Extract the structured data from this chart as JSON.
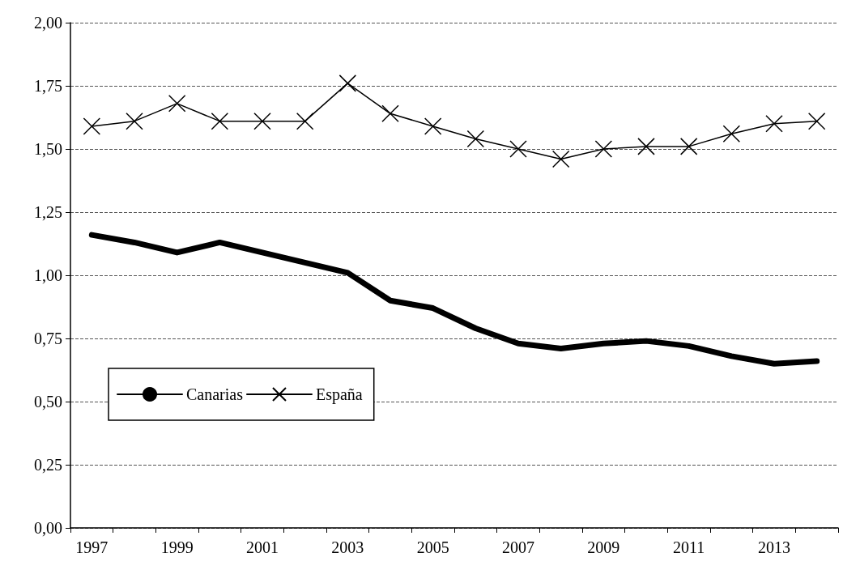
{
  "chart_data": {
    "type": "line",
    "categories": [
      "1997",
      null,
      "1999",
      null,
      "2001",
      null,
      "2003",
      null,
      "2005",
      null,
      "2007",
      null,
      "2009",
      null,
      "2011",
      null,
      "2013",
      null
    ],
    "series": [
      {
        "name": "Canarias",
        "color": "#000000",
        "marker": "none",
        "values": [
          1.16,
          1.13,
          1.09,
          1.13,
          1.09,
          1.05,
          1.01,
          0.9,
          0.87,
          0.79,
          0.73,
          0.71,
          0.73,
          0.74,
          0.72,
          0.68,
          0.65,
          0.66
        ]
      },
      {
        "name": "España",
        "color": "#000000",
        "marker": "cross",
        "values": [
          1.59,
          1.61,
          1.68,
          1.61,
          1.61,
          1.61,
          1.76,
          1.64,
          1.59,
          1.54,
          1.5,
          1.46,
          1.5,
          1.51,
          1.51,
          1.56,
          1.6,
          1.61
        ]
      }
    ],
    "ylim": [
      0,
      2
    ],
    "yticks": [
      {
        "value": 0,
        "label": "0,00"
      },
      {
        "value": 0.25,
        "label": "0,25"
      },
      {
        "value": 0.5,
        "label": "0,50"
      },
      {
        "value": 0.75,
        "label": "0,75"
      },
      {
        "value": 1,
        "label": "1,00"
      },
      {
        "value": 1.25,
        "label": "1,25"
      },
      {
        "value": 1.5,
        "label": "1,50"
      },
      {
        "value": 1.75,
        "label": "1,75"
      },
      {
        "value": 2,
        "label": "2,00"
      }
    ],
    "grid": "y",
    "legend": "bottom left"
  }
}
